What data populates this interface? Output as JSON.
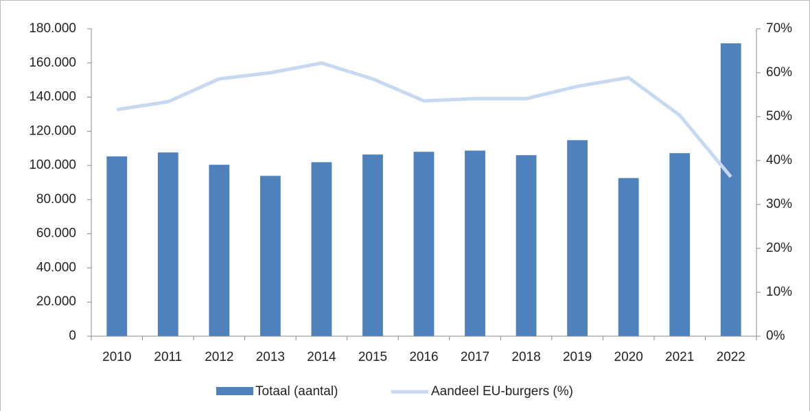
{
  "chart_data": {
    "type": "bar_line",
    "categories": [
      "2010",
      "2011",
      "2012",
      "2013",
      "2014",
      "2015",
      "2016",
      "2017",
      "2018",
      "2019",
      "2020",
      "2021",
      "2022"
    ],
    "series": [
      {
        "name": "Totaal (aantal)",
        "type": "bar",
        "color": "#4f81bd",
        "axis": "y",
        "values": [
          105300,
          107600,
          100400,
          93900,
          101900,
          106400,
          108000,
          108700,
          106000,
          114800,
          92600,
          107200,
          171500
        ]
      },
      {
        "name": "Aandeel EU-burgers (%)",
        "type": "line",
        "color": "#c6d9f1",
        "axis": "y2",
        "values": [
          51.6,
          53.4,
          58.6,
          60.0,
          62.2,
          58.6,
          53.6,
          54.1,
          54.1,
          56.9,
          58.9,
          50.3,
          36.3
        ]
      }
    ],
    "ylim": [
      0,
      180000
    ],
    "yticks": [
      0,
      {
        "value": 20000,
        "label": "20.000"
      },
      {
        "value": 40000,
        "label": "40.000"
      },
      {
        "value": 60000,
        "label": "60.000"
      },
      {
        "value": 80000,
        "label": "80.000"
      },
      {
        "value": 100000,
        "label": "100.000"
      },
      {
        "value": 120000,
        "label": "120.000"
      },
      {
        "value": 140000,
        "label": "140.000"
      },
      {
        "value": 160000,
        "label": "160.000"
      },
      {
        "value": 180000,
        "label": "180.000"
      }
    ],
    "y2lim": [
      0,
      70
    ],
    "y2ticks": [
      {
        "value": 0,
        "label": "0%"
      },
      {
        "value": 10,
        "label": "10%"
      },
      {
        "value": 20,
        "label": "20%"
      },
      {
        "value": 30,
        "label": "30%"
      },
      {
        "value": 40,
        "label": "40%"
      },
      {
        "value": 50,
        "label": "50%"
      },
      {
        "value": 60,
        "label": "60%"
      },
      {
        "value": 70,
        "label": "70%"
      }
    ],
    "legend": "bottom"
  }
}
